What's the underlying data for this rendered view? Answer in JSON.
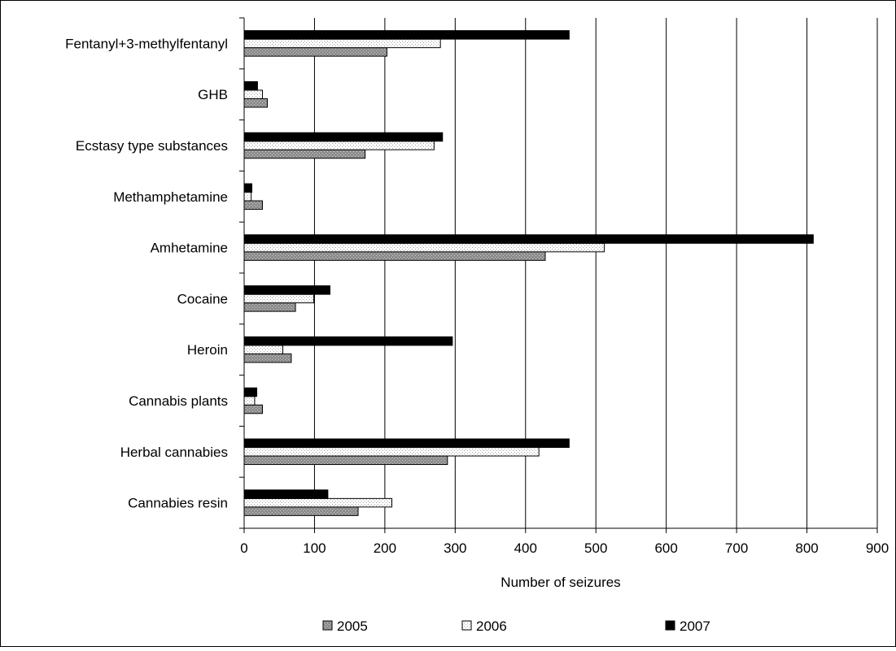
{
  "chart_data": {
    "type": "bar",
    "orientation": "horizontal",
    "title": "",
    "xlabel": "Number of seizures",
    "ylabel": "",
    "xlim": [
      0,
      900
    ],
    "xticks": [
      "0",
      "100",
      "200",
      "300",
      "400",
      "500",
      "600",
      "700",
      "800",
      "900"
    ],
    "grid": true,
    "legend_position": "bottom",
    "categories": [
      "Cannabies resin",
      "Herbal cannabies",
      "Cannabis plants",
      "Heroin",
      "Cocaine",
      "Amhetamine",
      "Methamphetamine",
      "Ecstasy type substances",
      "GHB",
      "Fentanyl+3-methylfentanyl"
    ],
    "series": [
      {
        "name": "2005",
        "color": "#808080",
        "pattern": "dotted-gray",
        "values": [
          162,
          289,
          26,
          67,
          73,
          428,
          26,
          172,
          33,
          203
        ]
      },
      {
        "name": "2006",
        "color": "#ffffff",
        "pattern": "dotted-white",
        "values": [
          210,
          419,
          15,
          55,
          99,
          512,
          10,
          270,
          26,
          279
        ]
      },
      {
        "name": "2007",
        "color": "#000000",
        "pattern": "solid",
        "values": [
          119,
          462,
          18,
          296,
          122,
          809,
          11,
          282,
          19,
          462
        ]
      }
    ]
  }
}
